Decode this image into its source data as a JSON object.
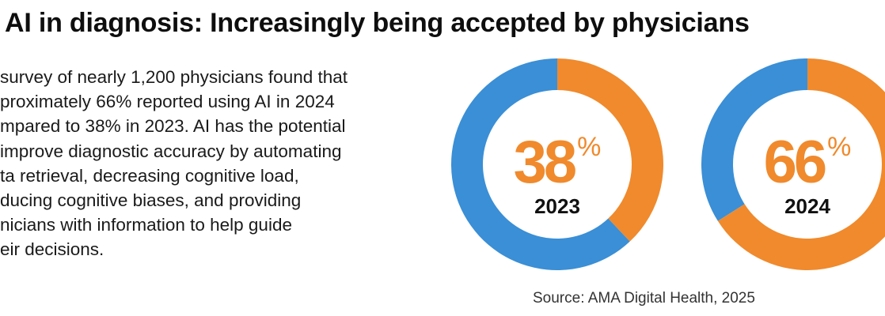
{
  "title": "AI in diagnosis: Increasingly being accepted by physicians",
  "body_lines": [
    "survey of nearly 1,200 physicians found that",
    "proximately 66% reported using AI in 2024",
    "mpared to 38% in 2023. AI has the potential",
    "improve diagnostic accuracy by automating",
    "ta retrieval, decreasing cognitive load,",
    "ducing cognitive biases, and providing",
    "nicians with information to help guide",
    "eir decisions."
  ],
  "source": "Source: AMA Digital Health, 2025",
  "colors": {
    "used_ai": "#f08a2c",
    "not_used": "#3a8fd6",
    "percent_text": "#f08a2c"
  },
  "chart_data": {
    "type": "pie",
    "variant": "donut",
    "categories": [
      "2023",
      "2024"
    ],
    "values": [
      38,
      66
    ],
    "unit": "%",
    "donuts": [
      {
        "year": "2023",
        "percent": 38,
        "percent_label": "38",
        "sign": "%"
      },
      {
        "year": "2024",
        "percent": 66,
        "percent_label": "66",
        "sign": "%"
      }
    ]
  }
}
